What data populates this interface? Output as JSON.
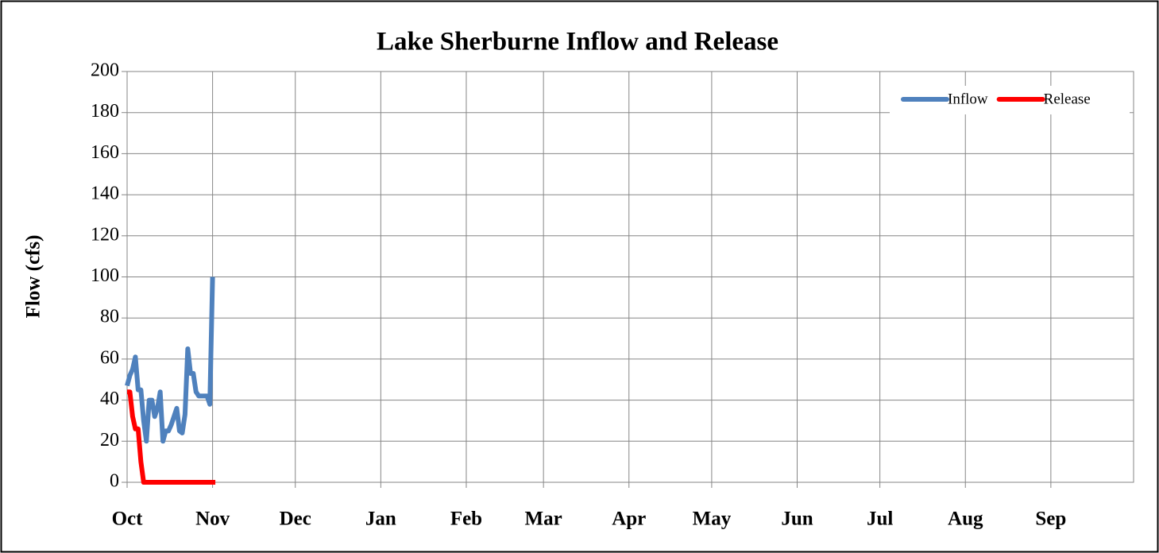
{
  "chart_data": {
    "type": "line",
    "title": "Lake Sherburne Inflow and Release",
    "y_label": "Flow (cfs)",
    "xlim": [
      0,
      365
    ],
    "xticks": [
      {
        "value": 0,
        "label": "Oct"
      },
      {
        "value": 31,
        "label": "Nov"
      },
      {
        "value": 61,
        "label": "Dec"
      },
      {
        "value": 92,
        "label": "Jan"
      },
      {
        "value": 123,
        "label": "Feb"
      },
      {
        "value": 151,
        "label": "Mar"
      },
      {
        "value": 182,
        "label": "Apr"
      },
      {
        "value": 212,
        "label": "May"
      },
      {
        "value": 243,
        "label": "Jun"
      },
      {
        "value": 273,
        "label": "Jul"
      },
      {
        "value": 304,
        "label": "Aug"
      },
      {
        "value": 335,
        "label": "Sep"
      }
    ],
    "ylim": [
      0,
      200
    ],
    "yticks": [
      0,
      20,
      40,
      60,
      80,
      100,
      120,
      140,
      160,
      180,
      200
    ],
    "grid": true,
    "legend": "upper right",
    "series": [
      {
        "name": "Inflow",
        "color": "#4f81bd",
        "x": [
          0,
          1,
          2,
          3,
          4,
          5,
          6,
          7,
          8,
          9,
          10,
          11,
          12,
          13,
          14,
          15,
          16,
          17,
          18,
          19,
          20,
          21,
          22,
          23,
          24,
          25,
          26,
          27,
          28,
          29,
          30,
          31
        ],
        "values": [
          47,
          52,
          55,
          61,
          45,
          45,
          30,
          20,
          40,
          40,
          32,
          36,
          44,
          20,
          25,
          25,
          28,
          32,
          36,
          25,
          24,
          33,
          65,
          53,
          53,
          44,
          42,
          42,
          42,
          42,
          38,
          100
        ]
      },
      {
        "name": "Release",
        "color": "#ff0000",
        "x": [
          0,
          1,
          2,
          3,
          4,
          5,
          6,
          7,
          8,
          9,
          10,
          11,
          12,
          13,
          14,
          15,
          16,
          17,
          18,
          19,
          20,
          21,
          22,
          23,
          24,
          25,
          26,
          27,
          28,
          29,
          30,
          31,
          32
        ],
        "values": [
          44,
          44,
          32,
          26,
          26,
          10,
          0,
          0,
          0,
          0,
          0,
          0,
          0,
          0,
          0,
          0,
          0,
          0,
          0,
          0,
          0,
          0,
          0,
          0,
          0,
          0,
          0,
          0,
          0,
          0,
          0,
          0,
          0
        ]
      }
    ]
  }
}
